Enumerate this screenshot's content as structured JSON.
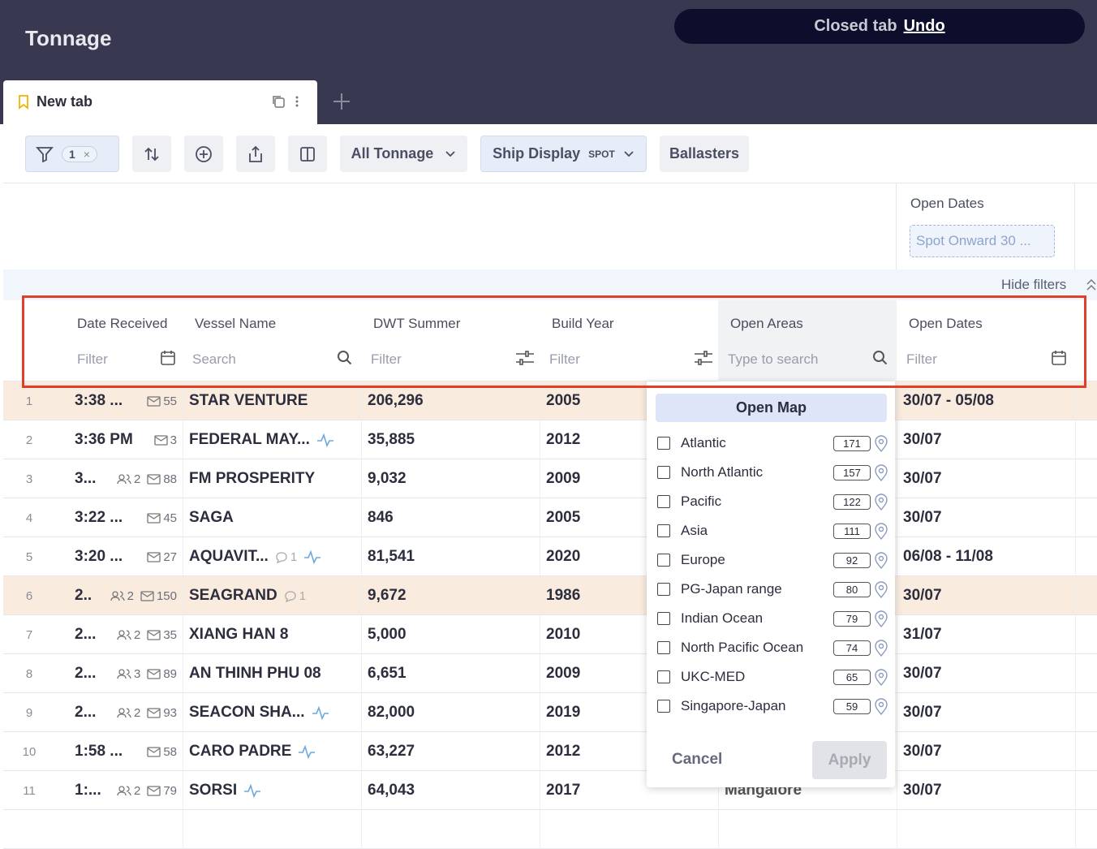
{
  "header": {
    "title": "Tonnage"
  },
  "toast": {
    "message": "Closed tab",
    "action": "Undo"
  },
  "tab": {
    "label": "New tab"
  },
  "toolbar": {
    "filter_count": 1,
    "view": "All Tonnage",
    "display": "Ship Display",
    "display_mode": "SPOT",
    "ballasters": "Ballasters"
  },
  "filters": {
    "open_dates": {
      "label": "Open Dates",
      "value": "Spot Onward 30 ..."
    },
    "hide": "Hide filters"
  },
  "table": {
    "columns": [
      {
        "title": "Date Received",
        "placeholder": "Filter"
      },
      {
        "title": "Vessel Name",
        "placeholder": "Search"
      },
      {
        "title": "DWT Summer",
        "placeholder": "Filter"
      },
      {
        "title": "Build Year",
        "placeholder": "Filter"
      },
      {
        "title": "Open Areas",
        "placeholder": "Type to search"
      },
      {
        "title": "Open Dates",
        "placeholder": "Filter"
      }
    ],
    "rows": [
      {
        "index": 1,
        "time": "3:38 ...",
        "mail": 55,
        "vessel": "STAR VENTURE",
        "dwt": "206,296",
        "build_year": 2005,
        "open_dates": "30/07 - 05/08",
        "highlight": true
      },
      {
        "index": 2,
        "time": "3:36 PM",
        "mail": 3,
        "vessel": "FEDERAL MAY...",
        "activity": true,
        "dwt": "35,885",
        "build_year": 2012,
        "open_dates": "30/07"
      },
      {
        "index": 3,
        "time": "3...",
        "people": 2,
        "mail": 88,
        "vessel": "FM PROSPERITY",
        "dwt": "9,032",
        "build_year": 2009,
        "open_dates": "30/07"
      },
      {
        "index": 4,
        "time": "3:22 ...",
        "mail": 45,
        "vessel": "SAGA",
        "dwt": "846",
        "build_year": 2005,
        "open_dates": "30/07"
      },
      {
        "index": 5,
        "time": "3:20 ...",
        "mail": 27,
        "vessel": "AQUAVIT...",
        "comments": 1,
        "activity": true,
        "dwt": "81,541",
        "build_year": 2020,
        "open_dates": "06/08 - 11/08"
      },
      {
        "index": 6,
        "time": "2..",
        "people": 2,
        "mail": 150,
        "vessel": "SEAGRAND",
        "comments": 1,
        "dwt": "9,672",
        "build_year": 1986,
        "open_dates": "30/07",
        "highlight": true
      },
      {
        "index": 7,
        "time": "2...",
        "people": 2,
        "mail": 35,
        "vessel": "XIANG HAN 8",
        "dwt": "5,000",
        "build_year": 2010,
        "open_dates": "31/07"
      },
      {
        "index": 8,
        "time": "2...",
        "people": 3,
        "mail": 89,
        "vessel": "AN THINH PHU 08",
        "dwt": "6,651",
        "build_year": 2009,
        "open_dates": "30/07"
      },
      {
        "index": 9,
        "time": "2...",
        "people": 2,
        "mail": 93,
        "vessel": "SEACON SHA...",
        "activity": true,
        "dwt": "82,000",
        "build_year": 2019,
        "open_dates": "30/07"
      },
      {
        "index": 10,
        "time": "1:58 ...",
        "mail": 58,
        "vessel": "CARO PADRE",
        "activity": true,
        "dwt": "63,227",
        "build_year": 2012,
        "open_dates": "30/07"
      },
      {
        "index": 11,
        "time": "1:...",
        "people": 2,
        "mail": 79,
        "vessel": "SORSI",
        "activity": true,
        "dwt": "64,043",
        "build_year": 2017,
        "open_area": "Mangalore",
        "open_dates": "30/07"
      }
    ]
  },
  "dropdown": {
    "button": "Open Map",
    "options": [
      {
        "label": "Atlantic",
        "count": 171
      },
      {
        "label": "North Atlantic",
        "count": 157
      },
      {
        "label": "Pacific",
        "count": 122
      },
      {
        "label": "Asia",
        "count": 111
      },
      {
        "label": "Europe",
        "count": 92
      },
      {
        "label": "PG-Japan range",
        "count": 80
      },
      {
        "label": "Indian Ocean",
        "count": 79
      },
      {
        "label": "North Pacific Ocean",
        "count": 74
      },
      {
        "label": "UKC-MED",
        "count": 65
      },
      {
        "label": "Singapore-Japan",
        "count": 59
      }
    ],
    "cancel": "Cancel",
    "apply": "Apply"
  }
}
